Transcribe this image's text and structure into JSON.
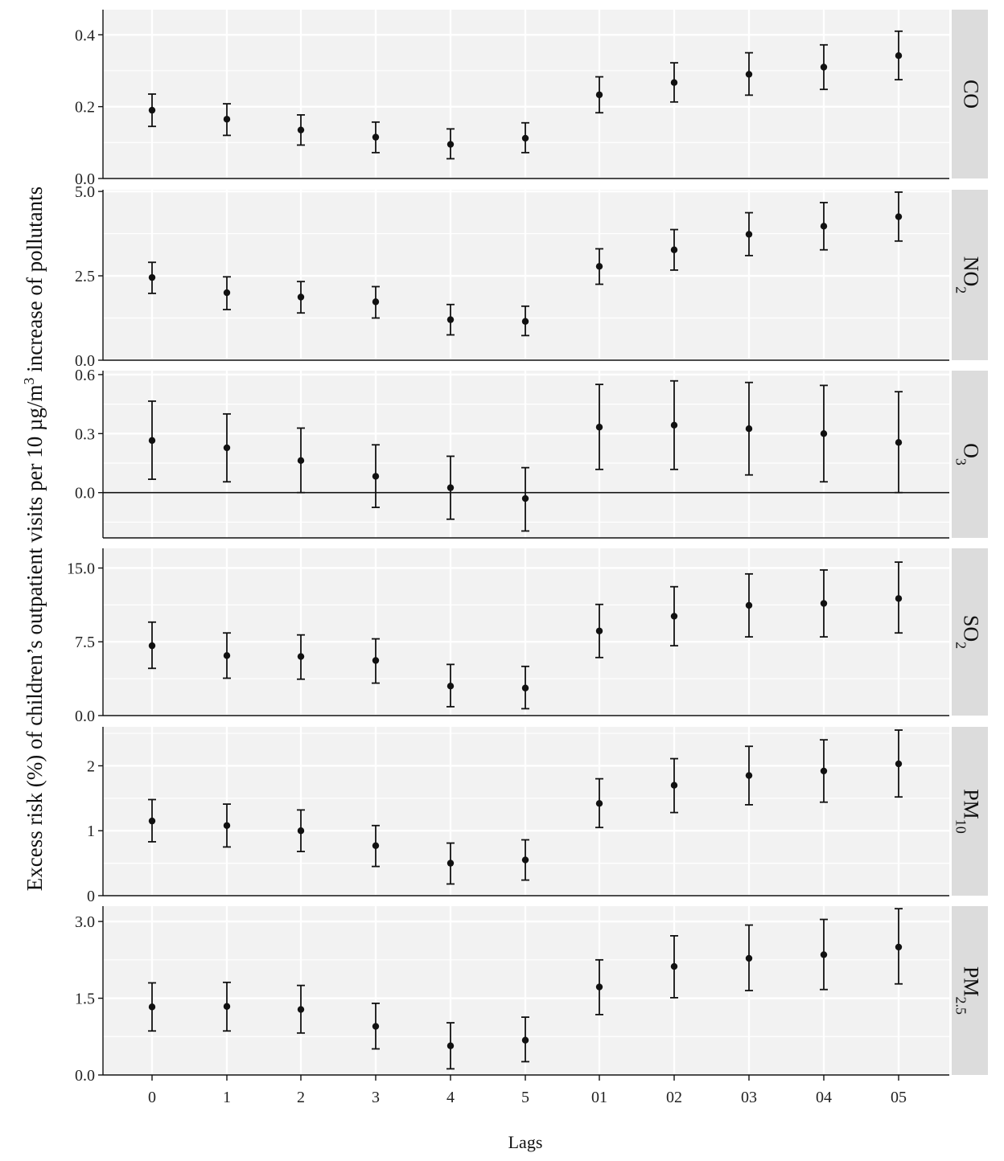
{
  "chart_data": {
    "type": "scatter",
    "subtype": "point-range facets",
    "xlabel": "Lags",
    "ylabel": {
      "before": "Excess risk (%) of children’s outpatient visits per 10 µg/m",
      "sup": "3",
      "after": " increase of pollutants"
    },
    "categories": [
      "0",
      "1",
      "2",
      "3",
      "4",
      "5",
      "01",
      "02",
      "03",
      "04",
      "05"
    ],
    "grid": true,
    "facet_strip_position": "right",
    "colors": {
      "panel_bg": "#f2f2f2",
      "grid": "#ffffff",
      "strip_bg": "#dcdcdc",
      "point": "#111111"
    },
    "panels": [
      {
        "label_main": "CO",
        "label_sub": "",
        "sub_type": "",
        "ylim": [
          0,
          0.47
        ],
        "ticks": [
          0,
          0.2,
          0.4
        ],
        "tick_labels": [
          "0.0",
          "0.2",
          "0.4"
        ],
        "zero_line": false,
        "estimate": [
          0.19,
          0.165,
          0.135,
          0.115,
          0.095,
          0.112,
          0.233,
          0.267,
          0.29,
          0.31,
          0.342
        ],
        "lower": [
          0.145,
          0.12,
          0.093,
          0.072,
          0.055,
          0.072,
          0.183,
          0.213,
          0.232,
          0.248,
          0.275
        ],
        "upper": [
          0.235,
          0.208,
          0.177,
          0.157,
          0.138,
          0.155,
          0.283,
          0.322,
          0.35,
          0.372,
          0.41
        ]
      },
      {
        "label_main": "NO",
        "label_sub": "2",
        "sub_type": "sub",
        "ylim": [
          0,
          5.05
        ],
        "ticks": [
          0,
          2.5,
          5.0
        ],
        "tick_labels": [
          "0.0",
          "2.5",
          "5.0"
        ],
        "zero_line": false,
        "estimate": [
          2.45,
          2.0,
          1.87,
          1.73,
          1.2,
          1.15,
          2.78,
          3.27,
          3.73,
          3.97,
          4.25
        ],
        "lower": [
          1.98,
          1.5,
          1.4,
          1.25,
          0.75,
          0.73,
          2.25,
          2.67,
          3.1,
          3.27,
          3.53
        ],
        "upper": [
          2.9,
          2.47,
          2.33,
          2.18,
          1.65,
          1.6,
          3.3,
          3.87,
          4.37,
          4.67,
          4.98
        ]
      },
      {
        "label_main": "O",
        "label_sub": "3",
        "sub_type": "sub",
        "ylim": [
          -0.23,
          0.62
        ],
        "ticks": [
          0,
          0.3,
          0.6
        ],
        "tick_labels": [
          "0.0",
          "0.3",
          "0.6"
        ],
        "zero_line": true,
        "estimate": [
          0.265,
          0.228,
          0.163,
          0.083,
          0.025,
          -0.03,
          0.333,
          0.343,
          0.325,
          0.3,
          0.255
        ],
        "lower": [
          0.068,
          0.055,
          0.0,
          -0.075,
          -0.135,
          -0.195,
          0.118,
          0.118,
          0.09,
          0.055,
          0.0
        ],
        "upper": [
          0.465,
          0.4,
          0.328,
          0.243,
          0.185,
          0.127,
          0.55,
          0.568,
          0.56,
          0.545,
          0.513
        ]
      },
      {
        "label_main": "SO",
        "label_sub": "2",
        "sub_type": "sub",
        "ylim": [
          0,
          17.0
        ],
        "ticks": [
          0,
          7.5,
          15.0
        ],
        "tick_labels": [
          "0.0",
          "7.5",
          "15.0"
        ],
        "zero_line": false,
        "estimate": [
          7.1,
          6.1,
          6.0,
          5.6,
          3.0,
          2.8,
          8.6,
          10.1,
          11.2,
          11.4,
          11.9
        ],
        "lower": [
          4.8,
          3.8,
          3.7,
          3.3,
          0.9,
          0.7,
          5.9,
          7.1,
          8.0,
          8.0,
          8.4
        ],
        "upper": [
          9.5,
          8.4,
          8.2,
          7.8,
          5.2,
          5.0,
          11.3,
          13.1,
          14.4,
          14.8,
          15.6
        ]
      },
      {
        "label_main": "PM",
        "label_sub": "10",
        "sub_type": "sub",
        "ylim": [
          0,
          2.6
        ],
        "ticks": [
          0,
          1,
          2
        ],
        "tick_labels": [
          "0",
          "1",
          "2"
        ],
        "zero_line": false,
        "estimate": [
          1.15,
          1.08,
          1.0,
          0.77,
          0.5,
          0.55,
          1.42,
          1.7,
          1.85,
          1.92,
          2.03
        ],
        "lower": [
          0.83,
          0.75,
          0.68,
          0.45,
          0.18,
          0.24,
          1.05,
          1.28,
          1.4,
          1.44,
          1.52
        ],
        "upper": [
          1.48,
          1.41,
          1.32,
          1.08,
          0.81,
          0.86,
          1.8,
          2.11,
          2.3,
          2.4,
          2.55
        ]
      },
      {
        "label_main": "PM",
        "label_sub": "2.5",
        "sub_type": "sub",
        "ylim": [
          0,
          3.3
        ],
        "ticks": [
          0,
          1.5,
          3.0
        ],
        "tick_labels": [
          "0.0",
          "1.5",
          "3.0"
        ],
        "zero_line": false,
        "estimate": [
          1.33,
          1.34,
          1.28,
          0.95,
          0.57,
          0.68,
          1.72,
          2.12,
          2.28,
          2.35,
          2.5
        ],
        "lower": [
          0.86,
          0.86,
          0.82,
          0.51,
          0.12,
          0.26,
          1.18,
          1.51,
          1.65,
          1.67,
          1.78
        ],
        "upper": [
          1.8,
          1.81,
          1.75,
          1.4,
          1.02,
          1.13,
          2.25,
          2.72,
          2.93,
          3.04,
          3.25
        ]
      }
    ]
  }
}
